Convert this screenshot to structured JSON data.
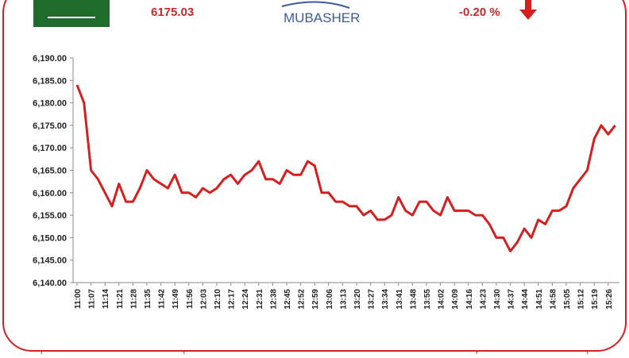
{
  "header": {
    "index_value": "6175.03",
    "brand": "MUBASHER",
    "change": "-0.20 %"
  },
  "chart_data": {
    "type": "line",
    "categories": [
      "11:00",
      null,
      "11:07",
      null,
      "11:14",
      null,
      "11:21",
      null,
      "11:28",
      null,
      "11:35",
      null,
      "11:42",
      null,
      "11:49",
      null,
      "11:56",
      null,
      "12:03",
      null,
      "12:10",
      null,
      "12:17",
      null,
      "12:24",
      null,
      "12:31",
      null,
      "12:38",
      null,
      "12:45",
      null,
      "12:52",
      null,
      "12:59",
      null,
      "13:06",
      null,
      "13:13",
      null,
      "13:20",
      null,
      "13:27",
      null,
      "13:34",
      null,
      "13:41",
      null,
      "13:48",
      null,
      "13:55",
      null,
      "14:02",
      null,
      "14:09",
      null,
      "14:16",
      null,
      "14:23",
      null,
      "14:30",
      null,
      "14:37",
      null,
      "14:44",
      null,
      "14:51",
      null,
      "14:58",
      null,
      "15:05",
      null,
      "15:12",
      null,
      "15:19",
      null,
      "15:26",
      null
    ],
    "values": [
      6184,
      6180,
      6165,
      6163,
      6160,
      6157,
      6162,
      6158,
      6158,
      6161,
      6165,
      6163,
      6162,
      6161,
      6164,
      6160,
      6160,
      6159,
      6161,
      6160,
      6161,
      6163,
      6164,
      6162,
      6164,
      6165,
      6167,
      6163,
      6163,
      6162,
      6165,
      6164,
      6164,
      6167,
      6166,
      6160,
      6160,
      6158,
      6158,
      6157,
      6157,
      6155,
      6156,
      6154,
      6154,
      6155,
      6159,
      6156,
      6155,
      6158,
      6158,
      6156,
      6155,
      6159,
      6156,
      6156,
      6156,
      6155,
      6155,
      6153,
      6150,
      6150,
      6147,
      6149,
      6152,
      6150,
      6154,
      6153,
      6156,
      6156,
      6157,
      6161,
      6163,
      6165,
      6172,
      6175,
      6173,
      6175
    ],
    "color": "#d42020",
    "ylim": [
      6140,
      6190
    ],
    "yticks": [
      {
        "value": 6140,
        "label": "6,140.00"
      },
      {
        "value": 6145,
        "label": "6,145.00"
      },
      {
        "value": 6150,
        "label": "6,150.00"
      },
      {
        "value": 6155,
        "label": "6,155.00"
      },
      {
        "value": 6160,
        "label": "6,160.00"
      },
      {
        "value": 6165,
        "label": "6,165.00"
      },
      {
        "value": 6170,
        "label": "6,170.00"
      },
      {
        "value": 6175,
        "label": "6,175.00"
      },
      {
        "value": 6180,
        "label": "6,180.00"
      },
      {
        "value": 6185,
        "label": "6,185.00"
      },
      {
        "value": 6190,
        "label": "6,190.00"
      }
    ],
    "grid": false
  }
}
